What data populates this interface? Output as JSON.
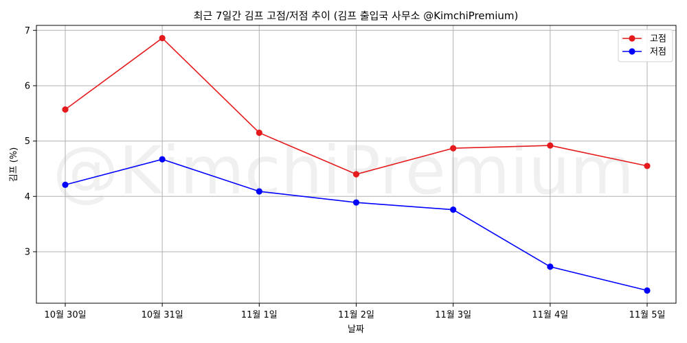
{
  "chart_data": {
    "type": "line",
    "title": "최근 7일간 김프 고점/저점 추이 (김프 출입국 사무소 @KimchiPremium)",
    "xlabel": "날짜",
    "ylabel": "김프 (%)",
    "categories": [
      "10월 30일",
      "10월 31일",
      "11월 1일",
      "11월 2일",
      "11월 3일",
      "11월 4일",
      "11월 5일"
    ],
    "series": [
      {
        "name": "고점",
        "color": "#e41a1c",
        "values": [
          5.57,
          6.86,
          5.15,
          4.4,
          4.87,
          4.92,
          4.55
        ]
      },
      {
        "name": "저점",
        "color": "#0000ff",
        "values": [
          4.21,
          4.67,
          4.09,
          3.89,
          3.76,
          2.73,
          2.3
        ]
      }
    ],
    "yticks": [
      3,
      4,
      5,
      6,
      7
    ],
    "ylim": [
      2.07,
      7.09
    ],
    "grid": true,
    "legend_position": "top-right",
    "watermark": "@KimchiPremium"
  }
}
